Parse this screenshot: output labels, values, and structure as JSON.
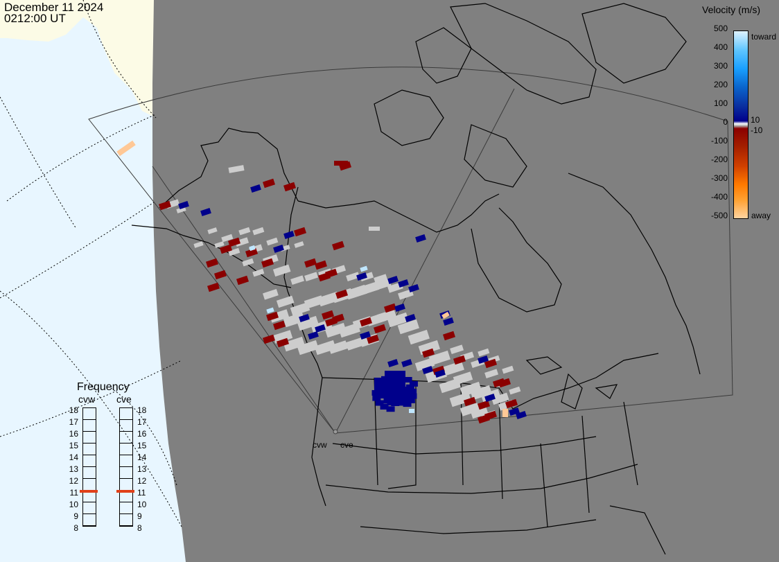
{
  "header": {
    "date": "December 11 2024",
    "time": "0212:00 UT"
  },
  "colors": {
    "ocean": "#e8f6ff",
    "ice": "#fcfbe6",
    "night_land": "#808080",
    "scatter_gray": "#cdcdcd",
    "toward_dark": "#00008b",
    "away_dark": "#8b0000"
  },
  "velocity_scale": {
    "title": "Velocity (m/s)",
    "ticks": [
      "500",
      "400",
      "300",
      "200",
      "100",
      "0",
      "-100",
      "-200",
      "-300",
      "-400",
      "-500"
    ],
    "label_10": "10",
    "label_neg10": "-10",
    "toward_label": "toward",
    "away_label": "away"
  },
  "frequency": {
    "title": "Frequency",
    "radars": [
      "cvw",
      "cve"
    ],
    "levels": [
      "18",
      "17",
      "16",
      "15",
      "14",
      "13",
      "12",
      "11",
      "10",
      "9",
      "8"
    ],
    "current_mhz": 10.9,
    "marker_color": "#e0401a"
  },
  "radars": {
    "cvw_label": "cvw",
    "cve_label": "cve"
  }
}
